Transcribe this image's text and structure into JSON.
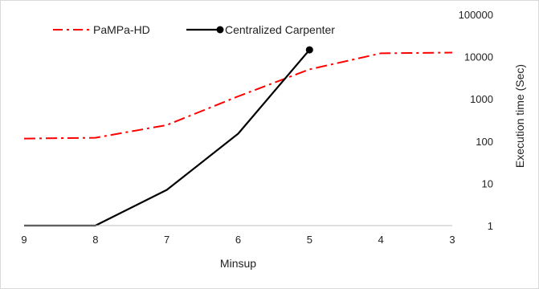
{
  "chart_data": {
    "type": "line",
    "x": [
      9,
      8,
      7,
      6,
      5,
      4,
      3
    ],
    "x_reversed": true,
    "xlim": [
      9,
      3
    ],
    "xlabel": "Minsup",
    "ylabel": "Execution time (Sec)",
    "y_scale": "log",
    "ylim": [
      1,
      100000
    ],
    "y_ticks": [
      "1",
      "10",
      "100",
      "1000",
      "10000",
      "100000"
    ],
    "x_ticks": [
      "9",
      "8",
      "7",
      "6",
      "5",
      "4",
      "3"
    ],
    "y_axis_side": "right",
    "grid": false,
    "legend_placement": "top-left",
    "series": [
      {
        "name": "PaMPa-HD",
        "color": "#ff0000",
        "style": "dash-dot",
        "marker": "none",
        "x": [
          9,
          8,
          7,
          6,
          5,
          4,
          3
        ],
        "values": [
          115,
          120,
          240,
          1150,
          5000,
          12000,
          12500
        ]
      },
      {
        "name": "Centralized Carpenter",
        "color": "#000000",
        "style": "solid",
        "marker": "end-circle",
        "x": [
          9,
          8,
          7,
          6,
          5
        ],
        "values": [
          1,
          1,
          7,
          150,
          14500
        ]
      }
    ]
  }
}
